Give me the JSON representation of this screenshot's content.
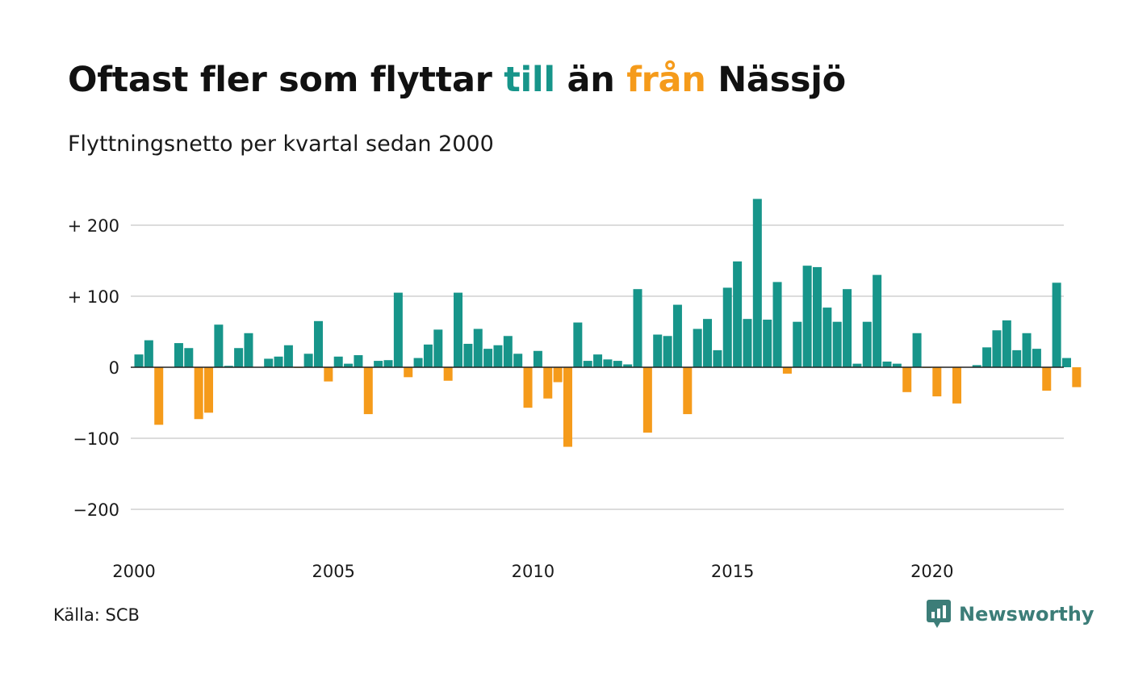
{
  "title": {
    "part1": "Oftast fler som flyttar ",
    "till": "till",
    "part2": " än ",
    "fran": "från",
    "part3": " Nässjö"
  },
  "subtitle": "Flyttningsnetto per kvartal sedan 2000",
  "source": "Källa: SCB",
  "brand": {
    "name": "Newsworthy",
    "icon": "newsworthy-logo-icon"
  },
  "colors": {
    "positive": "#17958a",
    "negative": "#f59b1b",
    "grid": "#dcdcdc",
    "zero": "#222222"
  },
  "chart_data": {
    "type": "bar",
    "title": "Oftast fler som flyttar till än från Nässjö",
    "subtitle": "Flyttningsnetto per kvartal sedan 2000",
    "xlabel": "",
    "ylabel": "",
    "x_start_year": 2000,
    "x_ticks": [
      2000,
      2005,
      2010,
      2015,
      2020
    ],
    "x_range": [
      2000,
      2023.25
    ],
    "ylim": [
      -220,
      245
    ],
    "y_ticks": [
      200,
      100,
      0,
      -100,
      -200
    ],
    "y_tick_labels": [
      "+ 200",
      "+ 100",
      "0",
      "−100",
      "−200"
    ],
    "grid": true,
    "values": [
      18,
      38,
      -81,
      0,
      34,
      27,
      -73,
      -64,
      60,
      2,
      27,
      48,
      0,
      12,
      15,
      31,
      -1,
      19,
      65,
      -20,
      15,
      5,
      17,
      -66,
      9,
      10,
      105,
      -14,
      13,
      32,
      53,
      -19,
      105,
      33,
      54,
      26,
      31,
      44,
      19,
      -57,
      23,
      -44,
      -21,
      -112,
      63,
      9,
      18,
      11,
      9,
      4,
      110,
      -92,
      46,
      44,
      88,
      -66,
      54,
      68,
      24,
      112,
      149,
      68,
      237,
      67,
      120,
      -9,
      64,
      143,
      141,
      84,
      64,
      110,
      5,
      64,
      130,
      8,
      5,
      -35,
      48,
      -1,
      -41,
      0,
      -51,
      0,
      3,
      28,
      52,
      66,
      24,
      48,
      26,
      -33,
      119,
      13,
      -28
    ]
  }
}
